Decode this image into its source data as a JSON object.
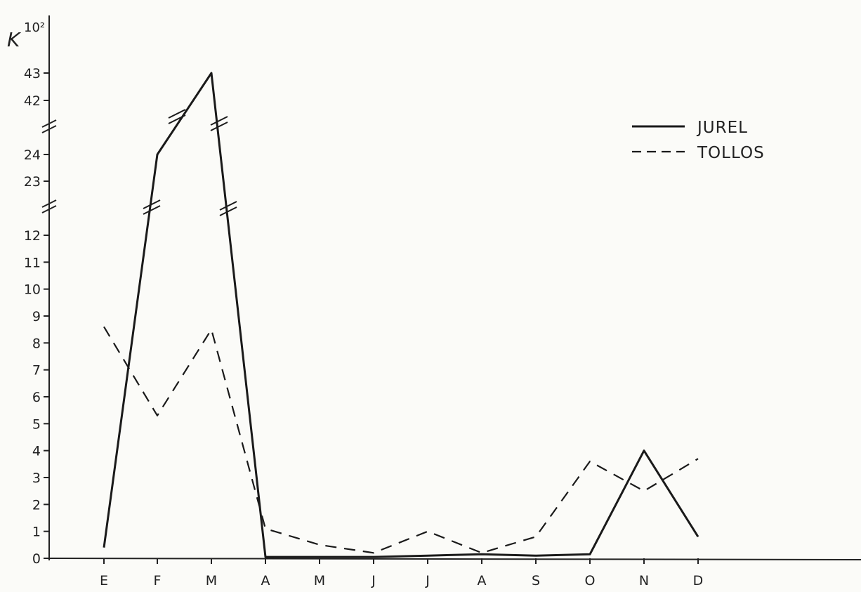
{
  "chart_data": {
    "type": "line",
    "title": "",
    "ylabel_base": "K",
    "ylabel_exponent": "10²",
    "xlabel": "",
    "categories": [
      "E",
      "F",
      "M",
      "A",
      "M",
      "J",
      "J",
      "A",
      "S",
      "O",
      "N",
      "D"
    ],
    "y_ticks": [
      "0",
      "1",
      "2",
      "3",
      "4",
      "5",
      "6",
      "7",
      "8",
      "9",
      "10",
      "11",
      "12",
      "23",
      "24",
      "42",
      "43"
    ],
    "y_axis_breaks": [
      "12-23",
      "24-42"
    ],
    "legend_position": "top-right",
    "grid": false,
    "series": [
      {
        "name": "JUREL",
        "style": "solid",
        "values": [
          0.4,
          24.0,
          43.0,
          0.05,
          0.05,
          0.05,
          0.1,
          0.15,
          0.1,
          0.15,
          4.0,
          0.8
        ]
      },
      {
        "name": "TOLLOS",
        "style": "dashed",
        "values": [
          8.6,
          5.3,
          8.5,
          1.1,
          0.5,
          0.2,
          1.0,
          0.2,
          0.8,
          3.6,
          2.5,
          3.7
        ]
      }
    ]
  }
}
